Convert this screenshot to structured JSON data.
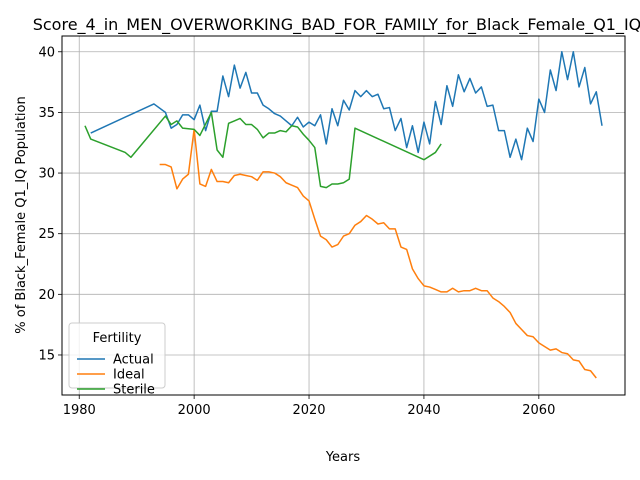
{
  "chart_data": {
    "type": "line",
    "title": "Score_4_in_MEN_OVERWORKING_BAD_FOR_FAMILY_for_Black_Female_Q1_IQ",
    "xlabel": "Years",
    "ylabel": "% of Black_Female Q1_IQ Population",
    "xlim": [
      1977,
      2075
    ],
    "ylim": [
      11.7,
      41.3
    ],
    "xticks": [
      1980,
      2000,
      2020,
      2040,
      2060
    ],
    "yticks": [
      15,
      20,
      25,
      30,
      35,
      40
    ],
    "grid": true,
    "legend": {
      "title": "Fertility",
      "position": "lower-left"
    },
    "series": [
      {
        "name": "Actual",
        "color": "#1f77b4",
        "points": [
          [
            1982,
            33.3
          ],
          [
            1993,
            35.7
          ],
          [
            1995,
            35.0
          ],
          [
            1996,
            33.7
          ],
          [
            1997,
            34.0
          ],
          [
            1998,
            34.8
          ],
          [
            1999,
            34.8
          ],
          [
            2000,
            34.4
          ],
          [
            2001,
            35.6
          ],
          [
            2002,
            33.5
          ],
          [
            2003,
            35.1
          ],
          [
            2004,
            35.1
          ],
          [
            2005,
            38.0
          ],
          [
            2006,
            36.3
          ],
          [
            2007,
            38.9
          ],
          [
            2008,
            37.0
          ],
          [
            2009,
            38.3
          ],
          [
            2010,
            36.6
          ],
          [
            2011,
            36.6
          ],
          [
            2012,
            35.6
          ],
          [
            2013,
            35.3
          ],
          [
            2014,
            34.9
          ],
          [
            2015,
            34.7
          ],
          [
            2016,
            34.3
          ],
          [
            2017,
            33.9
          ],
          [
            2018,
            34.6
          ],
          [
            2019,
            33.8
          ],
          [
            2020,
            34.2
          ],
          [
            2021,
            33.9
          ],
          [
            2022,
            34.8
          ],
          [
            2023,
            32.4
          ],
          [
            2024,
            35.3
          ],
          [
            2025,
            33.9
          ],
          [
            2026,
            36.0
          ],
          [
            2027,
            35.2
          ],
          [
            2028,
            36.8
          ],
          [
            2029,
            36.3
          ],
          [
            2030,
            36.8
          ],
          [
            2031,
            36.3
          ],
          [
            2032,
            36.5
          ],
          [
            2033,
            35.3
          ],
          [
            2034,
            35.4
          ],
          [
            2035,
            33.5
          ],
          [
            2036,
            34.5
          ],
          [
            2037,
            32.1
          ],
          [
            2038,
            33.9
          ],
          [
            2039,
            31.7
          ],
          [
            2040,
            34.2
          ],
          [
            2041,
            32.4
          ],
          [
            2042,
            35.9
          ],
          [
            2043,
            34.0
          ],
          [
            2044,
            37.2
          ],
          [
            2045,
            35.5
          ],
          [
            2046,
            38.1
          ],
          [
            2047,
            36.7
          ],
          [
            2048,
            37.8
          ],
          [
            2049,
            36.6
          ],
          [
            2050,
            37.1
          ],
          [
            2051,
            35.5
          ],
          [
            2052,
            35.6
          ],
          [
            2053,
            33.5
          ],
          [
            2054,
            33.5
          ],
          [
            2055,
            31.3
          ],
          [
            2056,
            32.8
          ],
          [
            2057,
            31.1
          ],
          [
            2058,
            33.7
          ],
          [
            2059,
            32.6
          ],
          [
            2060,
            36.1
          ],
          [
            2061,
            35.0
          ],
          [
            2062,
            38.5
          ],
          [
            2063,
            36.8
          ],
          [
            2064,
            40.0
          ],
          [
            2065,
            37.7
          ],
          [
            2066,
            40.0
          ],
          [
            2067,
            37.1
          ],
          [
            2068,
            38.7
          ],
          [
            2069,
            35.7
          ],
          [
            2070,
            36.7
          ],
          [
            2071,
            33.9
          ]
        ]
      },
      {
        "name": "Ideal",
        "color": "#ff7f0e",
        "points": [
          [
            1994,
            30.7
          ],
          [
            1995,
            30.7
          ],
          [
            1996,
            30.5
          ],
          [
            1997,
            28.7
          ],
          [
            1998,
            29.5
          ],
          [
            1999,
            29.9
          ],
          [
            2000,
            33.6
          ],
          [
            2001,
            29.1
          ],
          [
            2002,
            28.9
          ],
          [
            2003,
            30.3
          ],
          [
            2004,
            29.3
          ],
          [
            2005,
            29.3
          ],
          [
            2006,
            29.2
          ],
          [
            2007,
            29.8
          ],
          [
            2008,
            29.9
          ],
          [
            2009,
            29.8
          ],
          [
            2010,
            29.7
          ],
          [
            2011,
            29.4
          ],
          [
            2012,
            30.1
          ],
          [
            2013,
            30.1
          ],
          [
            2014,
            30.0
          ],
          [
            2015,
            29.7
          ],
          [
            2016,
            29.2
          ],
          [
            2017,
            29.0
          ],
          [
            2018,
            28.8
          ],
          [
            2019,
            28.1
          ],
          [
            2020,
            27.7
          ],
          [
            2021,
            26.2
          ],
          [
            2022,
            24.8
          ],
          [
            2023,
            24.5
          ],
          [
            2024,
            23.9
          ],
          [
            2025,
            24.1
          ],
          [
            2026,
            24.8
          ],
          [
            2027,
            25.0
          ],
          [
            2028,
            25.7
          ],
          [
            2029,
            26.0
          ],
          [
            2030,
            26.5
          ],
          [
            2031,
            26.2
          ],
          [
            2032,
            25.8
          ],
          [
            2033,
            25.9
          ],
          [
            2034,
            25.4
          ],
          [
            2035,
            25.4
          ],
          [
            2036,
            23.9
          ],
          [
            2037,
            23.7
          ],
          [
            2038,
            22.1
          ],
          [
            2039,
            21.3
          ],
          [
            2040,
            20.7
          ],
          [
            2041,
            20.6
          ],
          [
            2042,
            20.4
          ],
          [
            2043,
            20.2
          ],
          [
            2044,
            20.2
          ],
          [
            2045,
            20.5
          ],
          [
            2046,
            20.2
          ],
          [
            2047,
            20.3
          ],
          [
            2048,
            20.3
          ],
          [
            2049,
            20.5
          ],
          [
            2050,
            20.3
          ],
          [
            2051,
            20.3
          ],
          [
            2052,
            19.7
          ],
          [
            2053,
            19.4
          ],
          [
            2054,
            19.0
          ],
          [
            2055,
            18.5
          ],
          [
            2056,
            17.6
          ],
          [
            2057,
            17.1
          ],
          [
            2058,
            16.6
          ],
          [
            2059,
            16.5
          ],
          [
            2060,
            16.0
          ],
          [
            2061,
            15.7
          ],
          [
            2062,
            15.4
          ],
          [
            2063,
            15.5
          ],
          [
            2064,
            15.2
          ],
          [
            2065,
            15.1
          ],
          [
            2066,
            14.6
          ],
          [
            2067,
            14.5
          ],
          [
            2068,
            13.8
          ],
          [
            2069,
            13.7
          ],
          [
            2070,
            13.1
          ]
        ]
      },
      {
        "name": "Sterile",
        "color": "#2ca02c",
        "points": [
          [
            1981,
            33.9
          ],
          [
            1982,
            32.8
          ],
          [
            1988,
            31.7
          ],
          [
            1989,
            31.3
          ],
          [
            1995,
            34.7
          ],
          [
            1996,
            34.0
          ],
          [
            1997,
            34.3
          ],
          [
            1998,
            33.7
          ],
          [
            2000,
            33.6
          ],
          [
            2001,
            33.1
          ],
          [
            2003,
            35.0
          ],
          [
            2004,
            31.9
          ],
          [
            2005,
            31.3
          ],
          [
            2006,
            34.1
          ],
          [
            2007,
            34.3
          ],
          [
            2008,
            34.5
          ],
          [
            2009,
            34.0
          ],
          [
            2010,
            34.0
          ],
          [
            2011,
            33.6
          ],
          [
            2012,
            32.9
          ],
          [
            2013,
            33.3
          ],
          [
            2014,
            33.3
          ],
          [
            2015,
            33.5
          ],
          [
            2016,
            33.4
          ],
          [
            2017,
            33.9
          ],
          [
            2018,
            33.8
          ],
          [
            2019,
            33.2
          ],
          [
            2020,
            32.7
          ],
          [
            2021,
            32.1
          ],
          [
            2022,
            28.9
          ],
          [
            2023,
            28.8
          ],
          [
            2024,
            29.1
          ],
          [
            2025,
            29.1
          ],
          [
            2026,
            29.2
          ],
          [
            2027,
            29.5
          ],
          [
            2028,
            33.7
          ],
          [
            2040,
            31.1
          ],
          [
            2042,
            31.7
          ],
          [
            2043,
            32.4
          ]
        ]
      }
    ]
  }
}
